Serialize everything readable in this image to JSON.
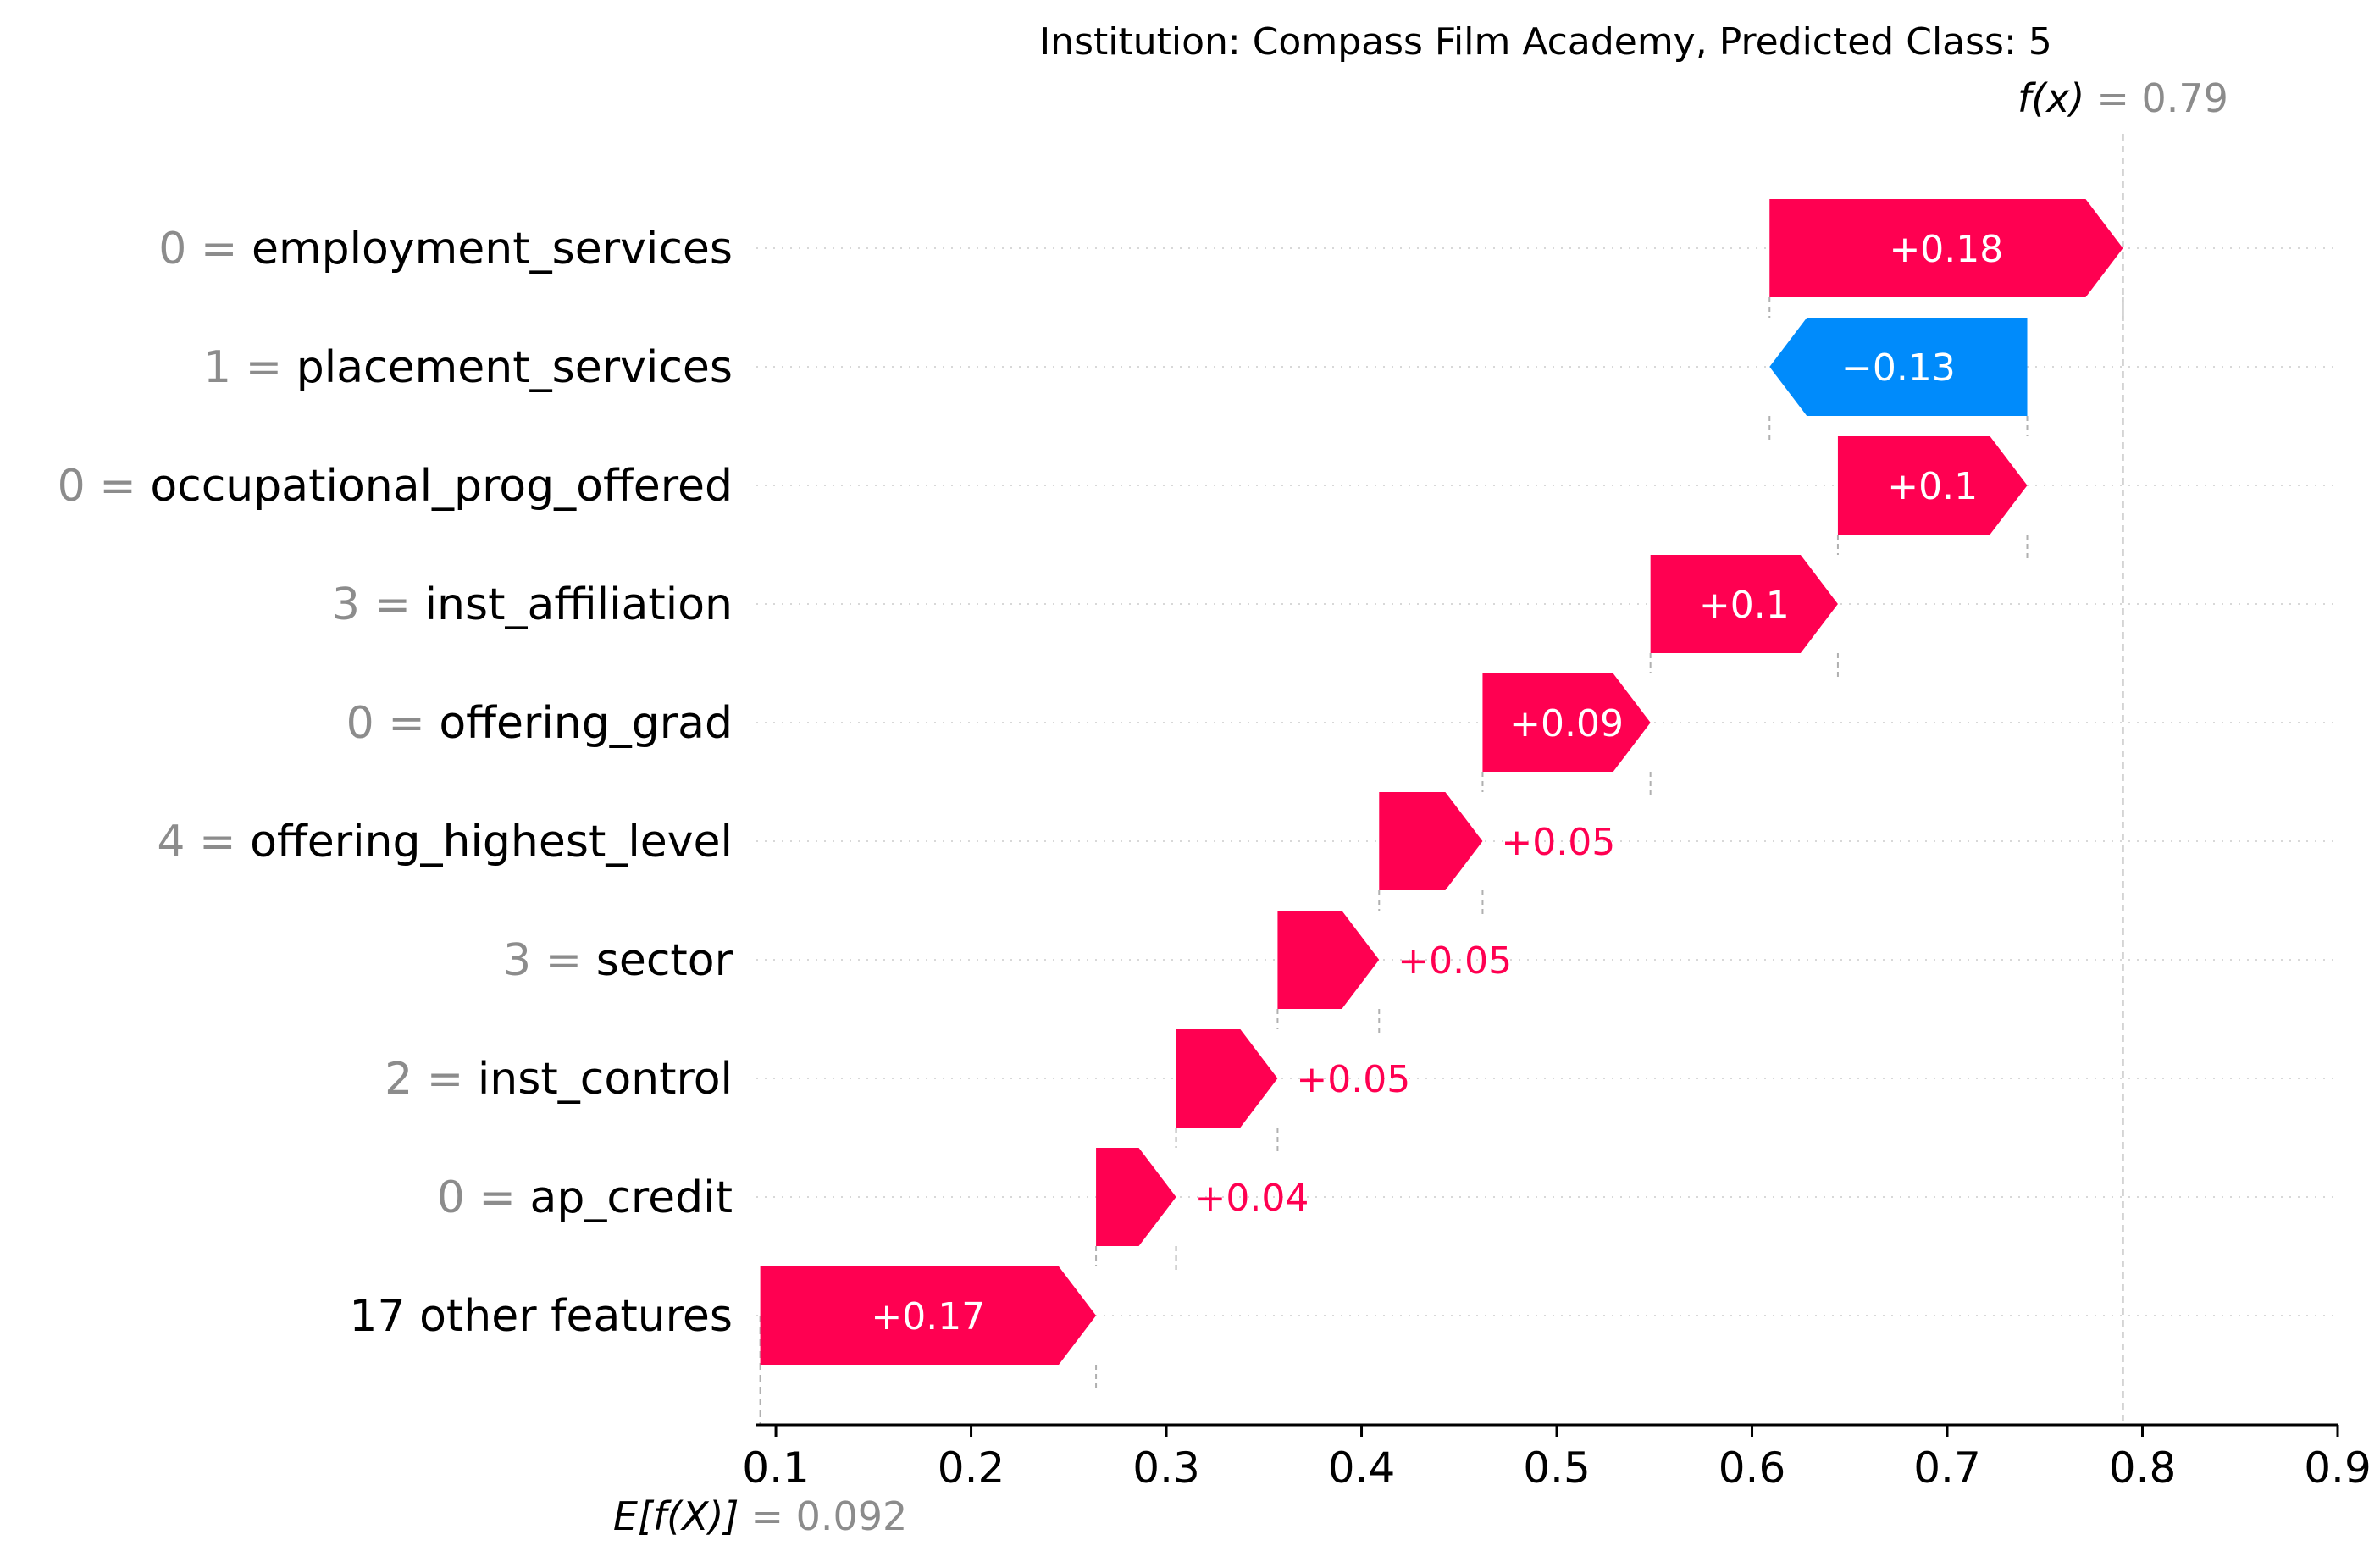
{
  "chart_data": {
    "type": "waterfall",
    "title": "Institution: Compass Film Academy, Predicted Class: 5",
    "base_value": 0.092,
    "base_label": "E[f(X)]",
    "base_value_text": "= 0.092",
    "output_value": 0.79,
    "output_label": "f(x)",
    "output_value_text": "= 0.79",
    "xlim": [
      0.09,
      0.9
    ],
    "x_ticks": [
      0.1,
      0.2,
      0.3,
      0.4,
      0.5,
      0.6,
      0.7,
      0.8,
      0.9
    ],
    "x_tick_labels": [
      "0.1",
      "0.2",
      "0.3",
      "0.4",
      "0.5",
      "0.6",
      "0.7",
      "0.8",
      "0.9"
    ],
    "colors": {
      "positive": "#ff0051",
      "negative": "#008bfb",
      "feature_value": "#8c8c8c",
      "guide": "#b0b0b0"
    },
    "features": [
      {
        "value": "0 =",
        "name": "employment_services",
        "contribution": 0.18,
        "label": "+0.18",
        "start": 0.609,
        "end": 0.79
      },
      {
        "value": "1 =",
        "name": "placement_services",
        "contribution": -0.13,
        "label": "−0.13",
        "start": 0.741,
        "end": 0.609
      },
      {
        "value": "0 =",
        "name": "occupational_prog_offered",
        "contribution": 0.1,
        "label": "+0.1",
        "start": 0.644,
        "end": 0.741
      },
      {
        "value": "3 =",
        "name": "inst_affiliation",
        "contribution": 0.1,
        "label": "+0.1",
        "start": 0.548,
        "end": 0.644
      },
      {
        "value": "0 =",
        "name": "offering_grad",
        "contribution": 0.09,
        "label": "+0.09",
        "start": 0.462,
        "end": 0.548
      },
      {
        "value": "4 =",
        "name": "offering_highest_level",
        "contribution": 0.05,
        "label": "+0.05",
        "start": 0.409,
        "end": 0.462
      },
      {
        "value": "3 =",
        "name": "sector",
        "contribution": 0.05,
        "label": "+0.05",
        "start": 0.357,
        "end": 0.409
      },
      {
        "value": "2 =",
        "name": "inst_control",
        "contribution": 0.05,
        "label": "+0.05",
        "start": 0.305,
        "end": 0.357
      },
      {
        "value": "0 =",
        "name": "ap_credit",
        "contribution": 0.04,
        "label": "+0.04",
        "start": 0.264,
        "end": 0.305
      },
      {
        "value": "",
        "name": "17 other features",
        "contribution": 0.17,
        "label": "+0.17",
        "start": 0.092,
        "end": 0.264
      }
    ]
  }
}
